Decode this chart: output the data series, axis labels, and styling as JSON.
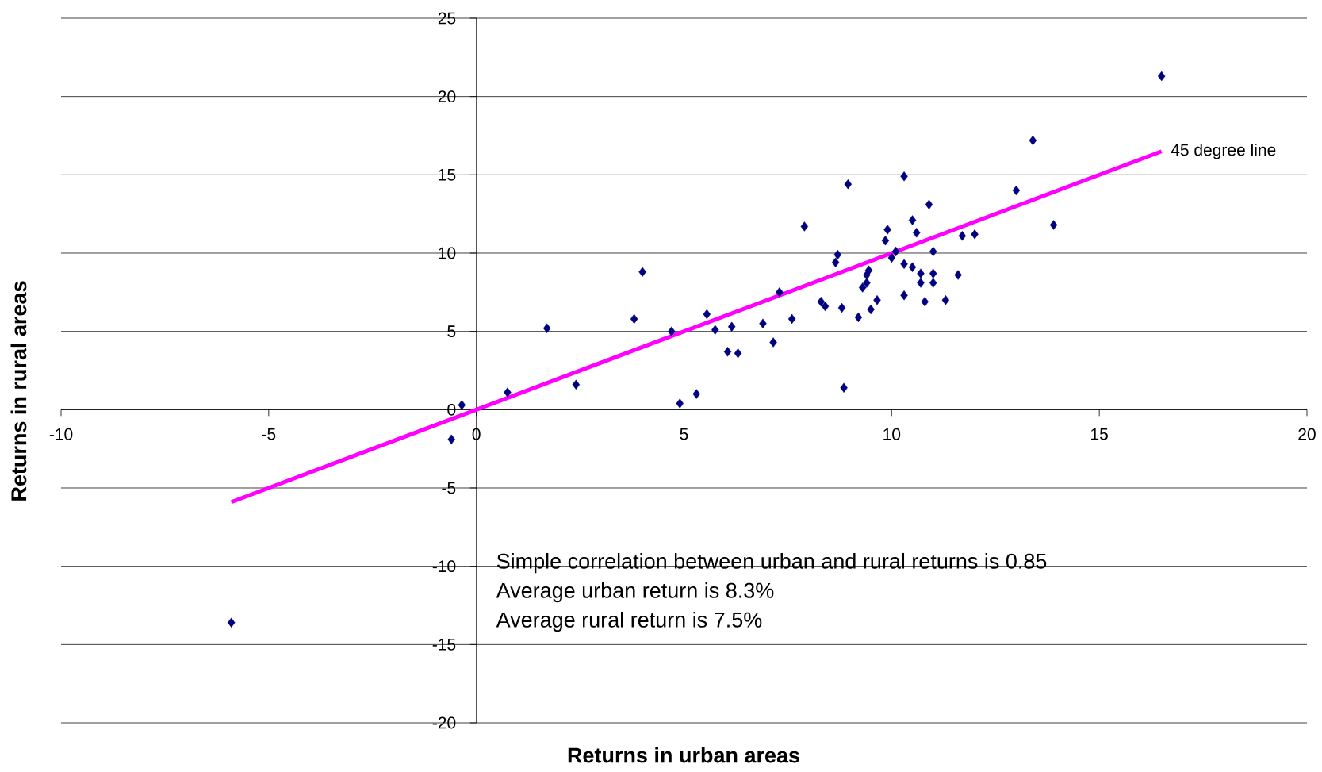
{
  "chart_data": {
    "type": "scatter",
    "xlabel": "Returns in urban areas",
    "ylabel": "Returns in rural areas",
    "xlim": [
      -10,
      20
    ],
    "xticks": [
      -10,
      -5,
      0,
      5,
      10,
      15,
      20
    ],
    "ylim": [
      -20,
      25
    ],
    "yticks": [
      -20,
      -15,
      -10,
      -5,
      0,
      5,
      10,
      15,
      20,
      25
    ],
    "grid": "y",
    "annotations": [
      "Simple correlation between urban and rural returns is 0.85",
      "Average urban return is 8.3%",
      "Average rural return is 7.5%"
    ],
    "series": [
      {
        "type": "scatter",
        "color": "#000080",
        "marker": "diamond",
        "x": [
          -5.9,
          -0.6,
          -0.35,
          0.75,
          1.7,
          2.4,
          3.8,
          4.0,
          4.7,
          4.9,
          5.3,
          5.55,
          5.75,
          6.05,
          6.15,
          6.3,
          6.9,
          7.15,
          7.3,
          7.6,
          7.9,
          8.3,
          8.4,
          8.65,
          8.7,
          8.8,
          8.85,
          8.95,
          9.2,
          9.3,
          9.4,
          9.45,
          9.4,
          9.5,
          9.65,
          9.85,
          9.9,
          10.0,
          10.1,
          10.3,
          10.3,
          10.3,
          10.5,
          10.5,
          10.6,
          10.7,
          10.7,
          10.8,
          10.9,
          11.0,
          11.0,
          11.0,
          11.3,
          11.6,
          11.7,
          12.0,
          13.0,
          13.4,
          13.9,
          16.5
        ],
        "values": [
          -13.6,
          -1.9,
          0.3,
          1.1,
          5.2,
          1.6,
          5.8,
          8.8,
          5.0,
          0.4,
          1.0,
          6.1,
          5.1,
          3.7,
          5.3,
          3.6,
          5.5,
          4.3,
          7.5,
          5.8,
          11.7,
          6.9,
          6.6,
          9.4,
          9.9,
          6.5,
          1.4,
          14.4,
          5.9,
          7.8,
          8.6,
          8.9,
          8.1,
          6.4,
          7.0,
          10.8,
          11.5,
          9.7,
          10.1,
          14.9,
          9.3,
          7.3,
          12.1,
          9.1,
          11.3,
          8.7,
          8.1,
          6.9,
          13.1,
          10.1,
          8.7,
          8.1,
          7.0,
          8.6,
          11.1,
          11.2,
          14.0,
          17.2,
          11.8,
          21.3
        ]
      },
      {
        "type": "line",
        "name": "45 degree line",
        "color": "#ff00ff",
        "marker": "none",
        "x": [
          -5.9,
          16.5
        ],
        "values": [
          -5.9,
          16.5
        ]
      }
    ]
  }
}
